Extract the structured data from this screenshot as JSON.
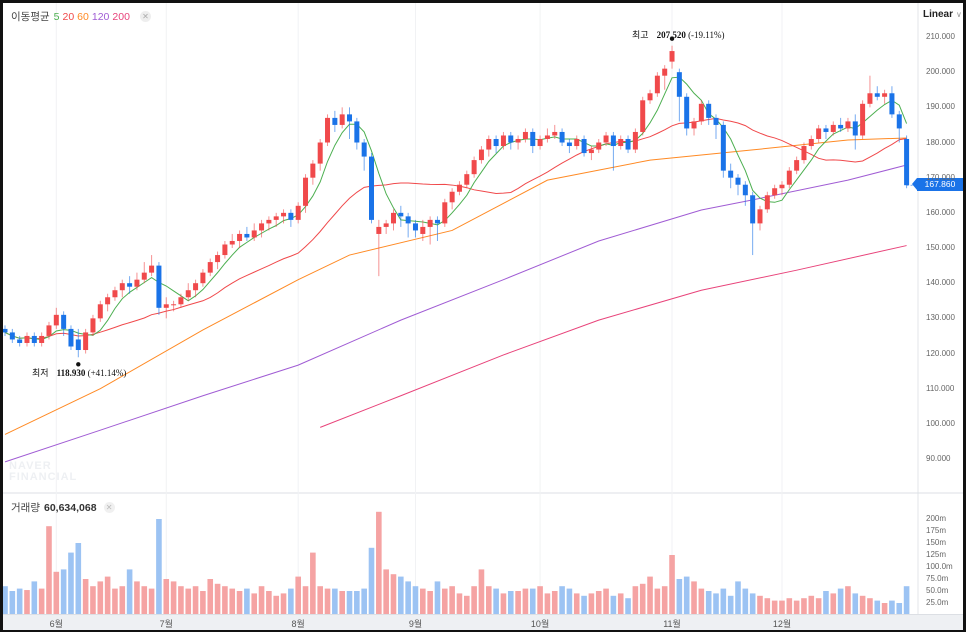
{
  "legend": {
    "label": "이동평균",
    "periods": [
      {
        "label": "5",
        "color": "#4caf50"
      },
      {
        "label": "20",
        "color": "#f0494b"
      },
      {
        "label": "60",
        "color": "#ff8a24"
      },
      {
        "label": "120",
        "color": "#a05cd4"
      },
      {
        "label": "200",
        "color": "#e8437a"
      }
    ]
  },
  "volume_legend": {
    "label": "거래량",
    "value": "60,634,068"
  },
  "scale_mode": "Linear",
  "current_price": "167.860",
  "annotations": {
    "high": {
      "label": "최고",
      "value": "207.520",
      "change": "(-19.11%)"
    },
    "low": {
      "label": "최저",
      "value": "118.930",
      "change": "(+41.14%)"
    }
  },
  "watermark": [
    "NAVER",
    "FINANCIAL"
  ],
  "colors": {
    "up": "#f0494b",
    "down": "#1a73e8",
    "up_vol": "#f5a3a3",
    "down_vol": "#9cc3f3"
  },
  "price_axis": {
    "ticks": [
      "210.000",
      "200.000",
      "190.000",
      "180.000",
      "170.000",
      "160.000",
      "150.000",
      "140.000",
      "130.000",
      "120.000",
      "110.000",
      "100.000",
      "90.000"
    ],
    "values": [
      210,
      200,
      190,
      180,
      170,
      160,
      150,
      140,
      130,
      120,
      110,
      100,
      90
    ]
  },
  "volume_axis": {
    "ticks": [
      "200m",
      "175m",
      "150m",
      "125m",
      "100.0m",
      "75.0m",
      "50.0m",
      "25.0m"
    ],
    "values": [
      200,
      175,
      150,
      125,
      100,
      75,
      50,
      25
    ]
  },
  "months": [
    {
      "label": "6월",
      "index": 7
    },
    {
      "label": "7월",
      "index": 22
    },
    {
      "label": "8월",
      "index": 40
    },
    {
      "label": "9월",
      "index": 56
    },
    {
      "label": "10월",
      "index": 73
    },
    {
      "label": "11월",
      "index": 91
    },
    {
      "label": "12월",
      "index": 106
    }
  ],
  "chart_data": {
    "type": "candlestick",
    "ylim": [
      85,
      215
    ],
    "candles": [
      [
        127,
        128,
        125,
        126
      ],
      [
        126,
        127,
        123,
        124
      ],
      [
        124,
        125,
        122,
        123
      ],
      [
        123,
        126,
        122,
        125
      ],
      [
        125,
        126,
        122,
        123
      ],
      [
        123,
        126,
        122,
        125
      ],
      [
        125,
        129,
        124,
        128
      ],
      [
        128,
        133,
        127,
        131
      ],
      [
        131,
        132,
        125,
        127
      ],
      [
        127,
        128,
        121,
        122
      ],
      [
        124,
        127,
        118.93,
        121
      ],
      [
        121,
        127,
        120,
        126
      ],
      [
        126,
        131,
        125,
        130
      ],
      [
        130,
        135,
        129,
        134
      ],
      [
        134,
        137,
        132,
        136
      ],
      [
        136,
        139,
        135,
        138
      ],
      [
        138,
        141,
        136,
        140
      ],
      [
        140,
        142,
        137,
        139
      ],
      [
        139,
        143,
        138,
        141
      ],
      [
        141,
        146,
        140,
        143
      ],
      [
        143,
        148,
        142,
        145
      ],
      [
        145,
        146,
        131,
        133
      ],
      [
        133,
        136,
        130,
        134
      ],
      [
        134,
        135,
        132,
        134
      ],
      [
        134,
        137,
        133,
        136
      ],
      [
        136,
        140,
        135,
        138
      ],
      [
        138,
        141,
        136,
        140
      ],
      [
        140,
        144,
        139,
        143
      ],
      [
        143,
        147,
        142,
        146
      ],
      [
        146,
        149,
        144,
        148
      ],
      [
        148,
        152,
        147,
        151
      ],
      [
        151,
        154,
        150,
        152
      ],
      [
        152,
        155,
        150,
        154
      ],
      [
        154,
        156,
        152,
        153
      ],
      [
        153,
        157,
        152,
        155
      ],
      [
        155,
        158,
        153,
        157
      ],
      [
        157,
        159,
        155,
        158
      ],
      [
        158,
        160,
        156,
        159
      ],
      [
        159,
        161,
        157,
        160
      ],
      [
        160,
        161,
        156,
        158
      ],
      [
        158,
        163,
        157,
        162
      ],
      [
        162,
        171,
        160,
        170
      ],
      [
        170,
        175,
        168,
        174
      ],
      [
        174,
        181,
        172,
        180
      ],
      [
        180,
        188,
        179,
        187
      ],
      [
        187,
        189,
        183,
        185
      ],
      [
        185,
        190,
        184,
        188
      ],
      [
        188,
        190,
        181,
        186
      ],
      [
        186,
        187,
        178,
        180
      ],
      [
        180,
        181,
        172,
        176
      ],
      [
        176,
        177,
        157,
        158
      ],
      [
        154,
        158,
        142,
        156
      ],
      [
        156,
        158,
        154,
        157
      ],
      [
        157,
        161,
        155,
        160
      ],
      [
        160,
        162,
        156,
        159
      ],
      [
        159,
        160,
        153,
        157
      ],
      [
        157,
        158,
        153,
        155
      ],
      [
        154,
        158,
        152,
        156
      ],
      [
        156,
        159,
        151,
        158
      ],
      [
        158,
        159,
        152,
        157
      ],
      [
        157,
        164,
        156,
        163
      ],
      [
        163,
        167,
        161,
        166
      ],
      [
        166,
        169,
        165,
        168
      ],
      [
        168,
        172,
        167,
        171
      ],
      [
        171,
        176,
        170,
        175
      ],
      [
        175,
        179,
        174,
        178
      ],
      [
        178,
        182,
        176,
        181
      ],
      [
        181,
        182,
        177,
        179
      ],
      [
        179,
        183,
        178,
        182
      ],
      [
        182,
        183,
        178,
        180
      ],
      [
        180,
        182,
        178,
        181
      ],
      [
        181,
        184,
        180,
        183
      ],
      [
        183,
        184,
        177,
        179
      ],
      [
        179,
        182,
        178,
        181
      ],
      [
        181,
        184,
        180,
        182
      ],
      [
        182,
        185,
        181,
        183
      ],
      [
        183,
        184,
        179,
        180
      ],
      [
        180,
        181,
        177,
        179
      ],
      [
        179,
        182,
        178,
        181
      ],
      [
        181,
        182,
        176,
        177
      ],
      [
        177,
        179,
        175,
        178
      ],
      [
        178,
        181,
        177,
        180
      ],
      [
        180,
        183,
        179,
        182
      ],
      [
        182,
        183,
        172,
        179
      ],
      [
        179,
        182,
        178,
        181
      ],
      [
        181,
        182,
        177,
        178
      ],
      [
        178,
        184,
        177,
        183
      ],
      [
        183,
        193,
        182,
        192
      ],
      [
        192,
        195,
        191,
        194
      ],
      [
        194,
        200,
        193,
        199
      ],
      [
        199,
        202,
        195,
        201
      ],
      [
        203,
        207.52,
        201,
        206
      ],
      [
        200,
        201,
        186,
        193
      ],
      [
        193,
        194,
        182,
        184
      ],
      [
        184,
        187,
        182,
        186
      ],
      [
        186,
        192,
        185,
        191
      ],
      [
        191,
        192,
        185,
        187
      ],
      [
        187,
        188,
        181,
        185
      ],
      [
        185,
        186,
        170,
        172
      ],
      [
        172,
        174,
        167,
        170
      ],
      [
        170,
        171,
        165,
        168
      ],
      [
        168,
        169,
        162,
        165
      ],
      [
        165,
        166,
        148,
        157
      ],
      [
        157,
        162,
        155,
        161
      ],
      [
        161,
        166,
        160,
        165
      ],
      [
        165,
        168,
        164,
        167
      ],
      [
        167,
        169,
        165,
        168
      ],
      [
        168,
        173,
        167,
        172
      ],
      [
        172,
        176,
        171,
        175
      ],
      [
        175,
        180,
        174,
        179
      ],
      [
        179,
        182,
        178,
        181
      ],
      [
        181,
        185,
        180,
        184
      ],
      [
        184,
        185,
        181,
        183
      ],
      [
        183,
        186,
        182,
        185
      ],
      [
        185,
        187,
        183,
        184
      ],
      [
        184,
        187,
        183,
        186
      ],
      [
        186,
        188,
        178,
        182
      ],
      [
        182,
        192,
        181,
        191
      ],
      [
        191,
        199,
        190,
        194
      ],
      [
        194,
        196,
        192,
        193
      ],
      [
        193,
        195,
        191,
        194
      ],
      [
        194,
        196,
        187,
        188
      ],
      [
        188,
        189,
        180,
        184
      ],
      [
        181,
        182,
        167,
        167.86
      ]
    ],
    "volumes_m": [
      60,
      50,
      55,
      52,
      70,
      55,
      185,
      90,
      95,
      130,
      150,
      75,
      60,
      70,
      80,
      55,
      60,
      95,
      70,
      60,
      55,
      200,
      75,
      70,
      60,
      55,
      60,
      50,
      75,
      65,
      60,
      55,
      50,
      55,
      45,
      60,
      50,
      40,
      45,
      55,
      80,
      60,
      130,
      60,
      55,
      55,
      50,
      50,
      50,
      55,
      140,
      215,
      95,
      85,
      80,
      70,
      60,
      55,
      50,
      70,
      55,
      60,
      45,
      40,
      60,
      95,
      60,
      55,
      45,
      50,
      50,
      55,
      55,
      60,
      45,
      50,
      60,
      55,
      45,
      40,
      45,
      50,
      55,
      40,
      45,
      35,
      60,
      65,
      80,
      55,
      60,
      125,
      75,
      80,
      70,
      55,
      50,
      45,
      55,
      40,
      70,
      55,
      45,
      40,
      35,
      30,
      30,
      35,
      30,
      35,
      40,
      35,
      50,
      45,
      55,
      60,
      45,
      40,
      35,
      30,
      25,
      30,
      25,
      60
    ],
    "ma_long": {
      "60": [
        [
          0,
          97
        ],
        [
          13,
          110
        ],
        [
          27,
          126.7
        ],
        [
          40,
          141
        ],
        [
          47,
          148
        ],
        [
          61,
          155
        ],
        [
          74,
          169.3
        ],
        [
          88,
          175
        ],
        [
          102,
          177.9
        ],
        [
          115,
          180.7
        ],
        [
          123,
          181.3
        ]
      ],
      "120": [
        [
          0,
          89.2
        ],
        [
          13,
          98.2
        ],
        [
          27,
          108
        ],
        [
          40,
          116.7
        ],
        [
          54,
          129.5
        ],
        [
          68,
          141
        ],
        [
          81,
          152
        ],
        [
          95,
          160.8
        ],
        [
          102,
          163.7
        ],
        [
          115,
          169.3
        ],
        [
          123,
          173.6
        ]
      ],
      "200": [
        [
          43,
          99
        ],
        [
          54,
          108
        ],
        [
          68,
          119.6
        ],
        [
          81,
          129.5
        ],
        [
          95,
          138
        ],
        [
          108,
          143.7
        ],
        [
          123,
          150.7
        ]
      ]
    }
  }
}
